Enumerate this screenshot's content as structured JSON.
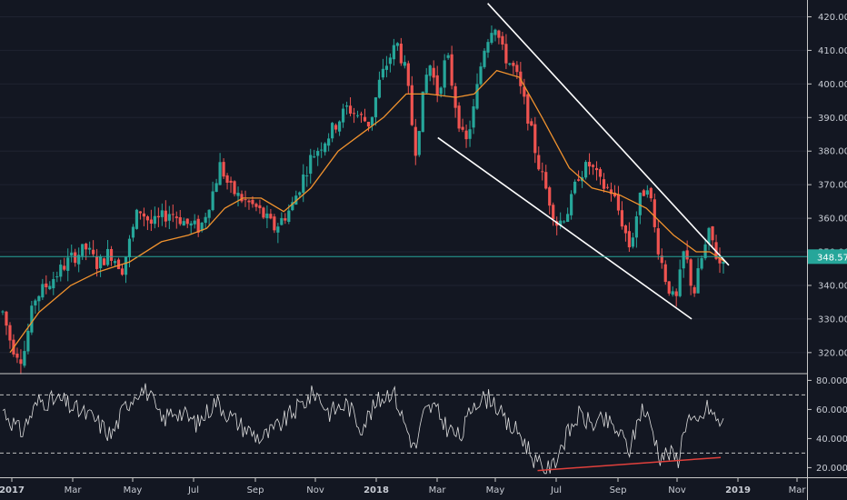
{
  "chart_data": [
    {
      "type": "candlestick",
      "price_axis": {
        "ticks": [
          "420.00",
          "410.00",
          "400.00",
          "390.00",
          "380.00",
          "370.00",
          "360.00",
          "350.00",
          "340.00",
          "330.00",
          "320.00"
        ],
        "range": [
          314,
          425
        ],
        "last_price_label": "348.57",
        "last_price": 348.57
      },
      "x_axis": {
        "labels": [
          "2017",
          "Mar",
          "May",
          "Jul",
          "Sep",
          "Nov",
          "2018",
          "Mar",
          "May",
          "Jul",
          "Sep",
          "Nov",
          "2019",
          "Mar"
        ],
        "bold_labels": [
          "2017",
          "2018",
          "2019"
        ]
      },
      "price_path": [
        {
          "d": 0,
          "p": 332
        },
        {
          "d": 10,
          "p": 322
        },
        {
          "d": 22,
          "p": 318
        },
        {
          "d": 35,
          "p": 336
        },
        {
          "d": 55,
          "p": 342
        },
        {
          "d": 75,
          "p": 348
        },
        {
          "d": 92,
          "p": 351
        },
        {
          "d": 105,
          "p": 346
        },
        {
          "d": 118,
          "p": 350
        },
        {
          "d": 132,
          "p": 345
        },
        {
          "d": 150,
          "p": 363
        },
        {
          "d": 165,
          "p": 358
        },
        {
          "d": 185,
          "p": 362
        },
        {
          "d": 205,
          "p": 358
        },
        {
          "d": 218,
          "p": 357
        },
        {
          "d": 232,
          "p": 368
        },
        {
          "d": 240,
          "p": 376
        },
        {
          "d": 250,
          "p": 369
        },
        {
          "d": 262,
          "p": 366
        },
        {
          "d": 280,
          "p": 363
        },
        {
          "d": 300,
          "p": 357
        },
        {
          "d": 318,
          "p": 363
        },
        {
          "d": 340,
          "p": 378
        },
        {
          "d": 360,
          "p": 385
        },
        {
          "d": 380,
          "p": 393
        },
        {
          "d": 395,
          "p": 390
        },
        {
          "d": 405,
          "p": 388
        },
        {
          "d": 415,
          "p": 400
        },
        {
          "d": 425,
          "p": 407
        },
        {
          "d": 435,
          "p": 412
        },
        {
          "d": 445,
          "p": 403
        },
        {
          "d": 455,
          "p": 380
        },
        {
          "d": 462,
          "p": 393
        },
        {
          "d": 470,
          "p": 407
        },
        {
          "d": 480,
          "p": 397
        },
        {
          "d": 490,
          "p": 409
        },
        {
          "d": 500,
          "p": 393
        },
        {
          "d": 510,
          "p": 381
        },
        {
          "d": 520,
          "p": 393
        },
        {
          "d": 530,
          "p": 410
        },
        {
          "d": 542,
          "p": 419
        },
        {
          "d": 552,
          "p": 409
        },
        {
          "d": 565,
          "p": 404
        },
        {
          "d": 578,
          "p": 392
        },
        {
          "d": 590,
          "p": 377
        },
        {
          "d": 600,
          "p": 368
        },
        {
          "d": 612,
          "p": 358
        },
        {
          "d": 625,
          "p": 363
        },
        {
          "d": 635,
          "p": 373
        },
        {
          "d": 648,
          "p": 376
        },
        {
          "d": 660,
          "p": 370
        },
        {
          "d": 672,
          "p": 368
        },
        {
          "d": 682,
          "p": 360
        },
        {
          "d": 692,
          "p": 351
        },
        {
          "d": 702,
          "p": 365
        },
        {
          "d": 712,
          "p": 371
        },
        {
          "d": 720,
          "p": 355
        },
        {
          "d": 730,
          "p": 343
        },
        {
          "d": 742,
          "p": 334
        },
        {
          "d": 752,
          "p": 351
        },
        {
          "d": 762,
          "p": 337
        },
        {
          "d": 770,
          "p": 347
        },
        {
          "d": 780,
          "p": 356
        },
        {
          "d": 790,
          "p": 346
        },
        {
          "d": 795,
          "p": 349
        }
      ],
      "moving_average": {
        "color": "#f0922e",
        "points": [
          {
            "d": 8,
            "p": 320
          },
          {
            "d": 40,
            "p": 332
          },
          {
            "d": 75,
            "p": 340
          },
          {
            "d": 105,
            "p": 344
          },
          {
            "d": 140,
            "p": 347
          },
          {
            "d": 175,
            "p": 353
          },
          {
            "d": 205,
            "p": 355
          },
          {
            "d": 225,
            "p": 357
          },
          {
            "d": 245,
            "p": 363
          },
          {
            "d": 265,
            "p": 366
          },
          {
            "d": 285,
            "p": 366
          },
          {
            "d": 310,
            "p": 362
          },
          {
            "d": 340,
            "p": 369
          },
          {
            "d": 370,
            "p": 380
          },
          {
            "d": 395,
            "p": 385
          },
          {
            "d": 420,
            "p": 390
          },
          {
            "d": 445,
            "p": 397
          },
          {
            "d": 470,
            "p": 397
          },
          {
            "d": 500,
            "p": 396
          },
          {
            "d": 520,
            "p": 397
          },
          {
            "d": 545,
            "p": 404
          },
          {
            "d": 570,
            "p": 402
          },
          {
            "d": 595,
            "p": 390
          },
          {
            "d": 625,
            "p": 375
          },
          {
            "d": 650,
            "p": 369
          },
          {
            "d": 680,
            "p": 367
          },
          {
            "d": 710,
            "p": 363
          },
          {
            "d": 740,
            "p": 355
          },
          {
            "d": 765,
            "p": 350
          },
          {
            "d": 780,
            "p": 350
          },
          {
            "d": 797,
            "p": 347
          }
        ]
      },
      "trendlines": [
        {
          "name": "upper",
          "color": "#ffffff",
          "from": {
            "d": 535,
            "p": 424
          },
          "to": {
            "d": 801,
            "p": 346
          }
        },
        {
          "name": "lower",
          "color": "#ffffff",
          "from": {
            "d": 480,
            "p": 384
          },
          "to": {
            "d": 760,
            "p": 330
          }
        }
      ],
      "price_line_color": "#26a69a",
      "candle_colors": {
        "up": "#26a69a",
        "down": "#ef5350"
      }
    },
    {
      "type": "line",
      "y_axis": {
        "ticks": [
          "80.0000",
          "60.0000",
          "40.0000",
          "20.0000"
        ],
        "range": [
          14,
          84
        ]
      },
      "levels": [
        70,
        30
      ],
      "line_color": "#dcdcdc",
      "rsi_path": [
        {
          "d": 0,
          "p": 60
        },
        {
          "d": 20,
          "p": 44
        },
        {
          "d": 40,
          "p": 66
        },
        {
          "d": 65,
          "p": 66
        },
        {
          "d": 80,
          "p": 60
        },
        {
          "d": 100,
          "p": 54
        },
        {
          "d": 120,
          "p": 42
        },
        {
          "d": 135,
          "p": 62
        },
        {
          "d": 150,
          "p": 74
        },
        {
          "d": 160,
          "p": 72
        },
        {
          "d": 175,
          "p": 52
        },
        {
          "d": 190,
          "p": 60
        },
        {
          "d": 215,
          "p": 50
        },
        {
          "d": 235,
          "p": 66
        },
        {
          "d": 250,
          "p": 56
        },
        {
          "d": 265,
          "p": 48
        },
        {
          "d": 285,
          "p": 40
        },
        {
          "d": 300,
          "p": 46
        },
        {
          "d": 320,
          "p": 58
        },
        {
          "d": 345,
          "p": 72
        },
        {
          "d": 360,
          "p": 58
        },
        {
          "d": 380,
          "p": 64
        },
        {
          "d": 395,
          "p": 48
        },
        {
          "d": 415,
          "p": 66
        },
        {
          "d": 430,
          "p": 74
        },
        {
          "d": 440,
          "p": 56
        },
        {
          "d": 455,
          "p": 32
        },
        {
          "d": 465,
          "p": 58
        },
        {
          "d": 475,
          "p": 62
        },
        {
          "d": 490,
          "p": 48
        },
        {
          "d": 505,
          "p": 40
        },
        {
          "d": 520,
          "p": 66
        },
        {
          "d": 540,
          "p": 68
        },
        {
          "d": 555,
          "p": 50
        },
        {
          "d": 570,
          "p": 44
        },
        {
          "d": 590,
          "p": 22
        },
        {
          "d": 605,
          "p": 18
        },
        {
          "d": 615,
          "p": 34
        },
        {
          "d": 635,
          "p": 56
        },
        {
          "d": 650,
          "p": 50
        },
        {
          "d": 665,
          "p": 52
        },
        {
          "d": 680,
          "p": 44
        },
        {
          "d": 692,
          "p": 32
        },
        {
          "d": 705,
          "p": 62
        },
        {
          "d": 715,
          "p": 50
        },
        {
          "d": 725,
          "p": 28
        },
        {
          "d": 735,
          "p": 30
        },
        {
          "d": 745,
          "p": 26
        },
        {
          "d": 755,
          "p": 56
        },
        {
          "d": 765,
          "p": 48
        },
        {
          "d": 778,
          "p": 62
        },
        {
          "d": 788,
          "p": 52
        },
        {
          "d": 795,
          "p": 50
        }
      ],
      "divergence_line": {
        "color": "#e0403c",
        "from": {
          "d": 590,
          "p": 18
        },
        "to": {
          "d": 792,
          "p": 27
        }
      }
    }
  ]
}
